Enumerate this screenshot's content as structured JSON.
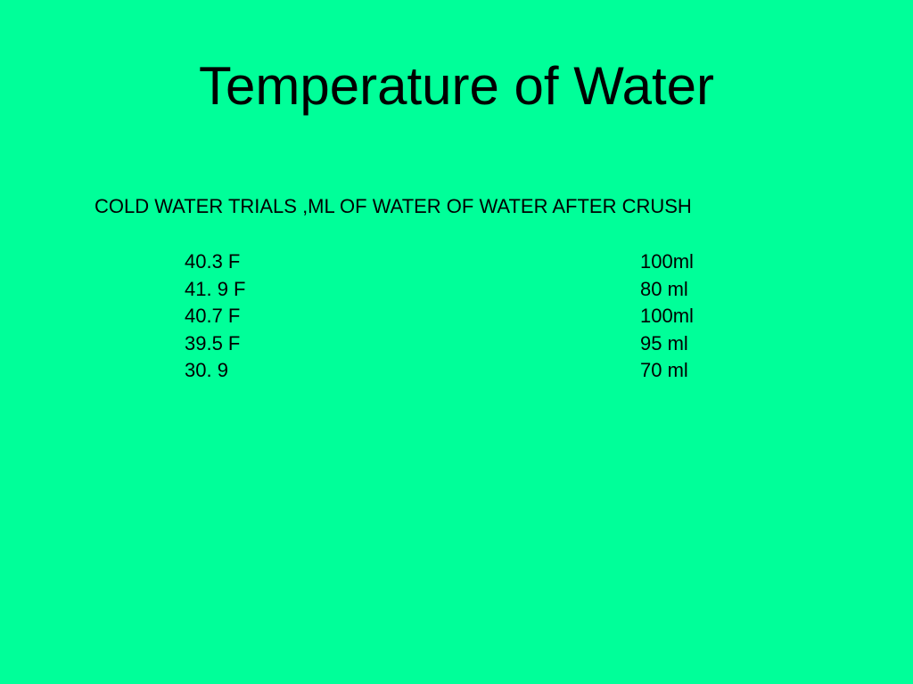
{
  "title": "Temperature of Water",
  "heading": "COLD WATER TRIALS ,ML OF WATER OF WATER AFTER CRUSH",
  "table": {
    "rows": [
      [
        "40.3 F",
        "100ml"
      ],
      [
        "41. 9 F",
        "80 ml"
      ],
      [
        "40.7 F",
        "100ml"
      ],
      [
        "39.5 F",
        "95 ml"
      ],
      [
        "30. 9",
        "70 ml"
      ]
    ]
  }
}
